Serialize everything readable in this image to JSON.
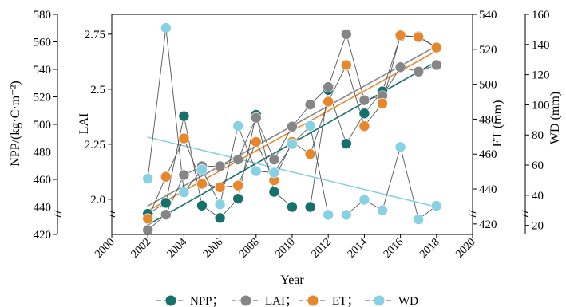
{
  "chart_data": {
    "type": "line",
    "x": [
      2002,
      2003,
      2004,
      2005,
      2006,
      2007,
      2008,
      2009,
      2010,
      2011,
      2012,
      2013,
      2014,
      2015,
      2016,
      2017,
      2018
    ],
    "xlabel": "Year",
    "xlim": [
      2000,
      2020
    ],
    "xticks": [
      "2000",
      "2002",
      "2004",
      "2006",
      "2008",
      "2010",
      "2012",
      "2014",
      "2016",
      "2018",
      "2020"
    ],
    "axes": {
      "npp": {
        "label": "NPP/(kg·C·m⁻²)",
        "lim": [
          420,
          580
        ],
        "ticks": [
          "420",
          "440",
          "460",
          "480",
          "500",
          "520",
          "540",
          "560",
          "580"
        ]
      },
      "lai": {
        "label": "LAI",
        "lim": [
          1.84,
          2.84
        ],
        "ticks": [
          "2.0",
          "2.25",
          "2.5",
          "2.75"
        ]
      },
      "et": {
        "label": "ET (mm)",
        "lim": [
          414,
          540
        ],
        "ticks": [
          "420",
          "440",
          "460",
          "480",
          "500",
          "520",
          "540"
        ]
      },
      "wd": {
        "label": "WD (mm)",
        "lim": [
          14,
          160
        ],
        "ticks": [
          "20",
          "40",
          "60",
          "80",
          "100",
          "120",
          "140",
          "160"
        ]
      }
    },
    "series": [
      {
        "name": "NPP",
        "key": "npp",
        "color": "#16706b",
        "values": [
          435,
          443,
          506,
          441,
          432,
          446,
          507,
          451,
          440,
          440,
          525,
          486,
          508,
          524,
          564,
          564,
          556
        ]
      },
      {
        "name": "LAI",
        "key": "lai",
        "color": "#868686",
        "values": [
          1.86,
          1.93,
          2.11,
          2.15,
          2.15,
          2.18,
          2.37,
          2.18,
          2.33,
          2.43,
          2.51,
          2.75,
          2.45,
          2.47,
          2.6,
          2.58,
          2.61
        ]
      },
      {
        "name": "ET",
        "key": "et",
        "color": "#e8862c",
        "values": [
          423,
          447,
          469,
          443,
          441,
          442,
          467,
          445,
          467,
          460,
          490,
          511,
          476,
          489,
          528,
          527,
          521
        ]
      },
      {
        "name": "WD",
        "key": "wd",
        "color": "#87d1e4",
        "values": [
          51,
          151,
          42,
          57,
          34,
          86,
          56,
          55,
          74,
          86,
          27,
          27,
          37,
          30,
          72,
          24,
          33
        ]
      }
    ],
    "legend": {
      "position": "bottom",
      "entries": [
        "NPP；",
        "LAI；",
        "ET；",
        "WD"
      ]
    },
    "trendlines": true,
    "grid": false
  }
}
